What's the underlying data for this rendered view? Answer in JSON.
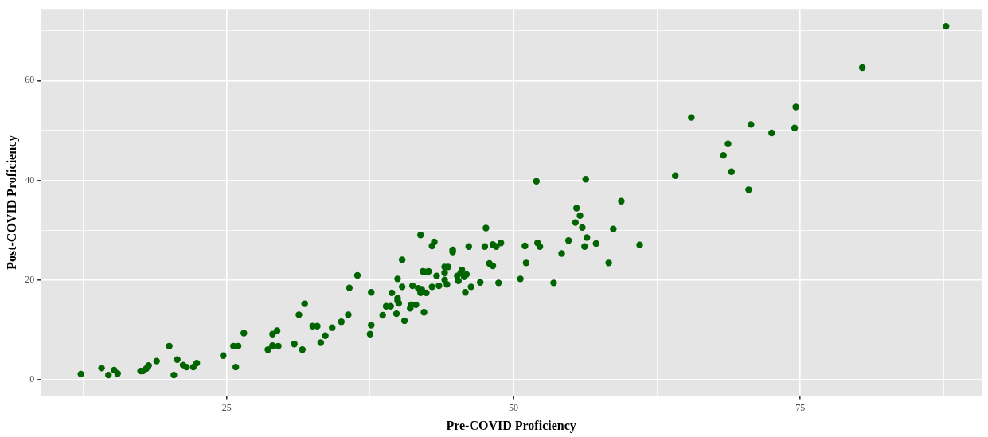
{
  "chart_data": {
    "type": "scatter",
    "xlabel": "Pre-COVID Proficiency",
    "ylabel": "Post-COVID Proficiency",
    "marker": "circle",
    "grid": true,
    "legend": false,
    "xlim": [
      8.8,
      90.8
    ],
    "ylim": [
      -3.3,
      74.4
    ],
    "xticks": [
      {
        "value": 12.5,
        "label": null
      },
      25,
      {
        "value": 37.5,
        "label": null
      },
      50,
      {
        "value": 62.5,
        "label": null
      },
      75,
      {
        "value": 87.5,
        "label": null
      }
    ],
    "yticks": [
      0,
      {
        "value": 10,
        "label": null
      },
      20,
      {
        "value": 30,
        "label": null
      },
      40,
      {
        "value": 50,
        "label": null
      },
      60,
      {
        "value": 70,
        "label": null
      }
    ],
    "series": [
      {
        "color": "#006400",
        "x": [
          12.3,
          14.1,
          14.7,
          15.2,
          15.5,
          17.5,
          17.7,
          18.0,
          18.2,
          18.9,
          20.0,
          20.4,
          20.7,
          21.2,
          21.5,
          22.1,
          22.4,
          24.7,
          25.6,
          26.0,
          25.8,
          26.5,
          28.6,
          29.0,
          29.5,
          29.0,
          29.4,
          30.9,
          31.6,
          32.5,
          32.9,
          33.2,
          33.6,
          34.2,
          35.0,
          35.6,
          31.3,
          31.8,
          35.7,
          36.4,
          37.5,
          37.6,
          37.6,
          38.6,
          38.9,
          39.3,
          39.4,
          39.9,
          39.9,
          40.0,
          39.8,
          39.9,
          40.3,
          40.3,
          40.5,
          41.0,
          41.1,
          41.5,
          41.2,
          41.7,
          42.0,
          41.9,
          42.4,
          41.9,
          42.1,
          42.3,
          42.6,
          42.2,
          42.9,
          43.1,
          42.9,
          43.3,
          43.5,
          44.0,
          44.3,
          44.0,
          44.0,
          44.2,
          44.7,
          44.7,
          45.1,
          45.5,
          45.9,
          45.2,
          45.7,
          45.4,
          45.8,
          46.1,
          46.3,
          47.1,
          47.5,
          47.6,
          48.2,
          48.5,
          48.9,
          47.9,
          48.2,
          48.7,
          50.6,
          51.0,
          51.1,
          52.0,
          52.1,
          52.3,
          53.5,
          54.2,
          54.8,
          55.4,
          55.5,
          55.8,
          56.0,
          56.2,
          56.3,
          56.4,
          57.2,
          58.3,
          58.7,
          59.4,
          61.0,
          64.1,
          65.5,
          68.3,
          68.7,
          69.0,
          70.5,
          70.7,
          72.5,
          74.5,
          74.6,
          80.4,
          87.7
        ],
        "values": [
          1.1,
          2.3,
          0.9,
          1.9,
          1.2,
          1.7,
          1.7,
          2.2,
          2.8,
          3.7,
          6.7,
          0.9,
          4.0,
          2.9,
          2.5,
          2.5,
          3.3,
          4.8,
          6.7,
          6.7,
          2.5,
          9.3,
          6.0,
          6.8,
          6.7,
          9.1,
          9.8,
          7.1,
          6.0,
          10.7,
          10.7,
          7.4,
          8.8,
          10.4,
          11.6,
          13.0,
          13.0,
          15.2,
          18.4,
          20.9,
          9.1,
          10.9,
          17.5,
          12.9,
          14.7,
          14.7,
          17.4,
          16.3,
          15.8,
          15.3,
          13.2,
          20.2,
          24.0,
          18.6,
          11.8,
          14.3,
          15.0,
          15.0,
          18.8,
          18.3,
          18.1,
          17.4,
          17.4,
          29.0,
          21.7,
          21.6,
          21.7,
          13.5,
          26.8,
          27.6,
          18.6,
          20.8,
          18.8,
          22.6,
          22.6,
          21.4,
          20.0,
          19.1,
          26.0,
          25.6,
          20.8,
          22.0,
          21.1,
          19.8,
          20.6,
          21.4,
          17.5,
          26.7,
          18.6,
          19.5,
          26.7,
          30.4,
          27.1,
          26.7,
          27.4,
          23.3,
          22.8,
          19.4,
          20.2,
          26.8,
          23.4,
          39.8,
          27.4,
          26.7,
          19.4,
          25.3,
          27.9,
          31.5,
          34.4,
          32.9,
          30.5,
          26.7,
          40.2,
          28.5,
          27.3,
          23.4,
          30.2,
          35.8,
          27.0,
          40.9,
          52.6,
          45.0,
          47.3,
          41.7,
          38.1,
          51.2,
          49.5,
          50.5,
          54.7,
          62.6,
          70.9
        ]
      }
    ]
  }
}
